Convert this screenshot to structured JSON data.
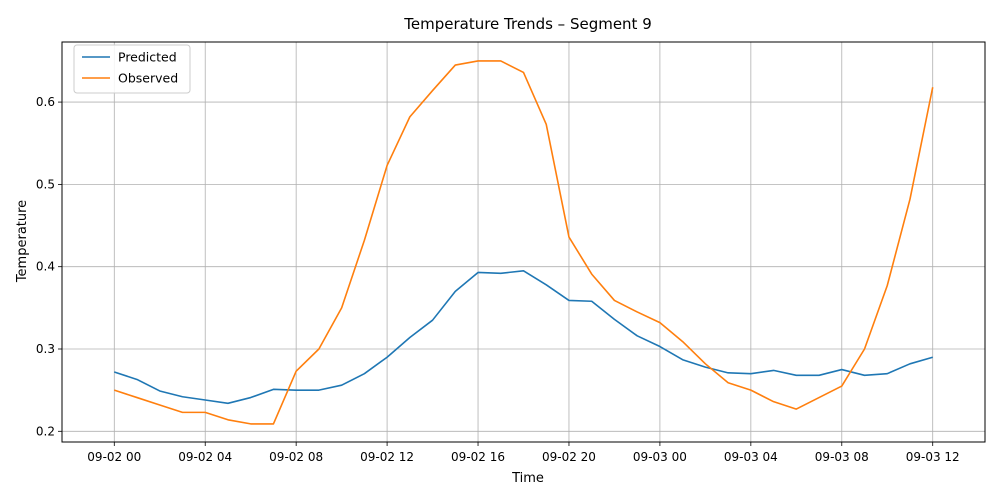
{
  "chart_data": {
    "type": "line",
    "title": "Temperature Trends – Segment 9",
    "xlabel": "Time",
    "ylabel": "Temperature",
    "x_start": "2024-09-02T00:00",
    "x_step_hours": 1,
    "xlim_hours": [
      -2.3,
      38.3
    ],
    "ylim": [
      0.187,
      0.673
    ],
    "x_ticks": [
      {
        "hour": 0,
        "label": "09-02 00"
      },
      {
        "hour": 4,
        "label": "09-02 04"
      },
      {
        "hour": 8,
        "label": "09-02 08"
      },
      {
        "hour": 12,
        "label": "09-02 12"
      },
      {
        "hour": 16,
        "label": "09-02 16"
      },
      {
        "hour": 20,
        "label": "09-02 20"
      },
      {
        "hour": 24,
        "label": "09-03 00"
      },
      {
        "hour": 28,
        "label": "09-03 04"
      },
      {
        "hour": 32,
        "label": "09-03 08"
      },
      {
        "hour": 36,
        "label": "09-03 12"
      }
    ],
    "y_ticks": [
      0.2,
      0.3,
      0.4,
      0.5,
      0.6
    ],
    "grid": true,
    "legend_position": "upper-left",
    "series": [
      {
        "name": "Predicted",
        "color": "#1f77b4",
        "values": [
          0.272,
          0.263,
          0.249,
          0.242,
          0.238,
          0.234,
          0.241,
          0.251,
          0.25,
          0.25,
          0.256,
          0.27,
          0.29,
          0.314,
          0.335,
          0.37,
          0.393,
          0.392,
          0.395,
          0.378,
          0.359,
          0.358,
          0.336,
          0.316,
          0.303,
          0.287,
          0.278,
          0.271,
          0.27,
          0.274,
          0.268,
          0.268,
          0.275,
          0.268,
          0.27,
          0.282,
          0.29
        ]
      },
      {
        "name": "Observed",
        "color": "#ff7f0e",
        "values": [
          0.25,
          0.241,
          0.232,
          0.223,
          0.223,
          0.214,
          0.209,
          0.209,
          0.273,
          0.3,
          0.35,
          0.432,
          0.523,
          0.582,
          0.614,
          0.645,
          0.65,
          0.65,
          0.636,
          0.573,
          0.436,
          0.391,
          0.359,
          0.345,
          0.332,
          0.309,
          0.282,
          0.259,
          0.25,
          0.236,
          0.227,
          0.241,
          0.255,
          0.3,
          0.377,
          0.482,
          0.618
        ]
      }
    ]
  }
}
